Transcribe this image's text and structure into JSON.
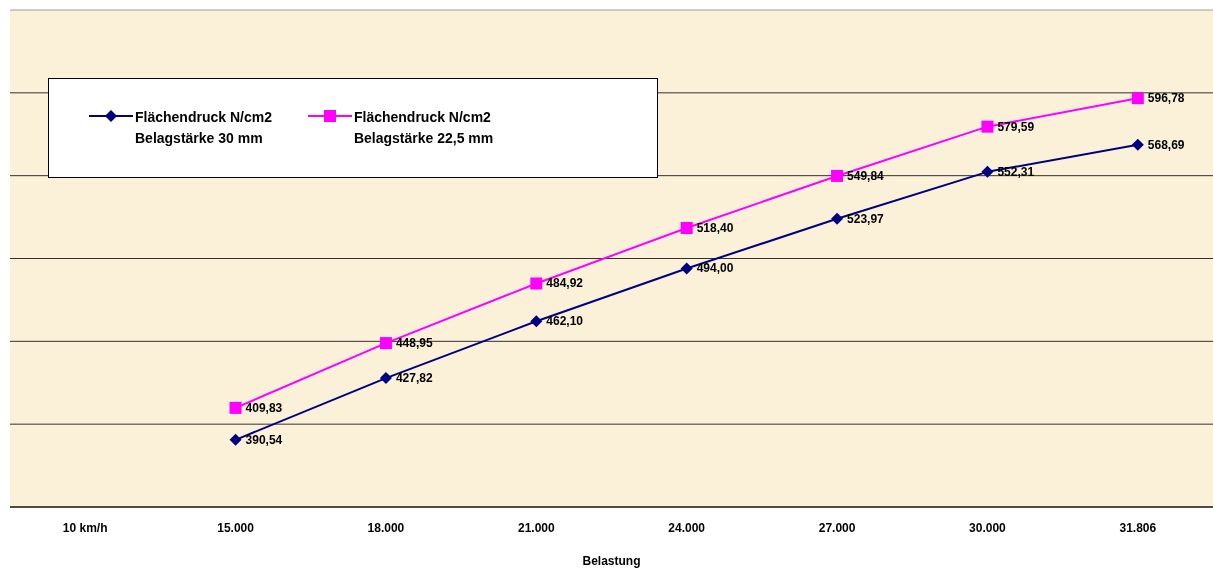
{
  "chart_data": {
    "type": "line",
    "xlabel": "Belastung",
    "categories": [
      "10 km/h",
      "15.000",
      "18.000",
      "21.000",
      "24.000",
      "27.000",
      "30.000",
      "31.806"
    ],
    "series": [
      {
        "name": "Flächendruck N/cm2\nBelagstärke 30 mm",
        "color": "#000080",
        "marker": "diamond",
        "values": [
          null,
          390.54,
          427.82,
          462.1,
          494.0,
          523.97,
          552.31,
          568.69
        ],
        "value_labels": [
          null,
          "390,54",
          "427,82",
          "462,10",
          "494,00",
          "523,97",
          "552,31",
          "568,69"
        ]
      },
      {
        "name": "Flächendruck N/cm2\nBelagstärke 22,5 mm",
        "color": "#ff00ff",
        "marker": "square",
        "values": [
          null,
          409.83,
          448.95,
          484.92,
          518.4,
          549.84,
          579.59,
          596.78
        ],
        "value_labels": [
          null,
          "409,83",
          "448,95",
          "484,92",
          "518,40",
          "549,84",
          "579,59",
          "596,78"
        ]
      }
    ],
    "ylim": [
      350,
      650
    ],
    "yticks": [
      {
        "value": 350,
        "label": null
      },
      {
        "value": 400,
        "label": null
      },
      {
        "value": 450,
        "label": null
      },
      {
        "value": 500,
        "label": null
      },
      {
        "value": 550,
        "label": null
      },
      {
        "value": 600,
        "label": null
      },
      {
        "value": 650,
        "label": null
      }
    ],
    "tick_labels": "x",
    "grid": "y",
    "legend": "top left",
    "line_style": "solid"
  }
}
